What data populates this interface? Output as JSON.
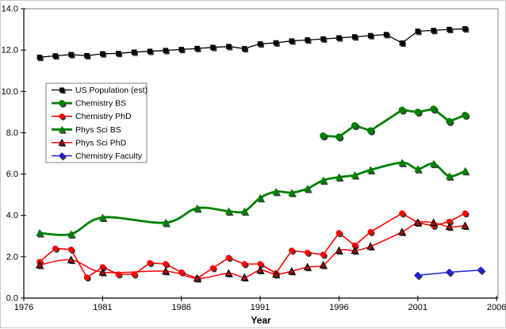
{
  "chart_data": {
    "type": "line",
    "title": "",
    "xlabel": "Year",
    "ylabel": "",
    "grid": false,
    "plot_bg": "#FFFFFF",
    "legend_position": "upper-left-inside",
    "xlim": [
      1976,
      2006.2
    ],
    "ylim": [
      0,
      14
    ],
    "x_tick_labels": [
      "1976",
      "1981",
      "1986",
      "1991",
      "1996",
      "2001",
      "2006"
    ],
    "y_tick_labels": [
      "0.0",
      "2.0",
      "4.0",
      "6.0",
      "8.0",
      "10.0",
      "12.0",
      "14.0"
    ],
    "series": [
      {
        "name": "US Population (est)",
        "color": "#000000",
        "marker": "square",
        "marker_fill": "#000000",
        "marker_stroke": "none",
        "marker_size": 6.5,
        "line_width": 1.3,
        "smooth": false,
        "points": [
          [
            1977,
            11.65
          ],
          [
            1978,
            11.72
          ],
          [
            1979,
            11.78
          ],
          [
            1980,
            11.73
          ],
          [
            1981,
            11.82
          ],
          [
            1982,
            11.84
          ],
          [
            1983,
            11.9
          ],
          [
            1984,
            11.94
          ],
          [
            1985,
            11.98
          ],
          [
            1986,
            12.03
          ],
          [
            1987,
            12.08
          ],
          [
            1988,
            12.13
          ],
          [
            1989,
            12.17
          ],
          [
            1990,
            12.07
          ],
          [
            1991,
            12.3
          ],
          [
            1992,
            12.35
          ],
          [
            1993,
            12.44
          ],
          [
            1994,
            12.49
          ],
          [
            1995,
            12.54
          ],
          [
            1996,
            12.59
          ],
          [
            1997,
            12.64
          ],
          [
            1998,
            12.7
          ],
          [
            1999,
            12.75
          ],
          [
            2000,
            12.34
          ],
          [
            2001,
            12.91
          ],
          [
            2002,
            12.95
          ],
          [
            2003,
            13.0
          ],
          [
            2004,
            13.03
          ]
        ]
      },
      {
        "name": "Chemistry BS",
        "color": "#008000",
        "marker": "circle",
        "marker_fill": "#008000",
        "marker_stroke": "none",
        "marker_size": 8.6,
        "line_width": 2.8,
        "smooth": false,
        "points": [
          [
            1995,
            7.85
          ],
          [
            1996,
            7.8
          ],
          [
            1997,
            8.35
          ],
          [
            1998,
            8.1
          ],
          [
            2000,
            9.1
          ],
          [
            2001,
            9.0
          ],
          [
            2002,
            9.15
          ],
          [
            2003,
            8.55
          ],
          [
            2004,
            8.85
          ]
        ]
      },
      {
        "name": "Chemistry PhD",
        "color": "#FF0000",
        "marker": "circle",
        "marker_fill": "#FF0000",
        "marker_stroke": "none",
        "marker_size": 7.4,
        "line_width": 1.6,
        "smooth": false,
        "points": [
          [
            1977,
            1.75
          ],
          [
            1978,
            2.4
          ],
          [
            1979,
            2.35
          ],
          [
            1980,
            1.0
          ],
          [
            1981,
            1.5
          ],
          [
            1982,
            1.15
          ],
          [
            1983,
            1.15
          ],
          [
            1984,
            1.7
          ],
          [
            1985,
            1.65
          ],
          [
            1986,
            1.25
          ],
          [
            1987,
            0.95
          ],
          [
            1988,
            1.45
          ],
          [
            1989,
            1.95
          ],
          [
            1990,
            1.65
          ],
          [
            1991,
            1.65
          ],
          [
            1992,
            1.2
          ],
          [
            1993,
            2.3
          ],
          [
            1994,
            2.2
          ],
          [
            1995,
            2.1
          ],
          [
            1996,
            3.15
          ],
          [
            1997,
            2.55
          ],
          [
            1998,
            3.2
          ],
          [
            2000,
            4.1
          ],
          [
            2001,
            3.65
          ],
          [
            2002,
            3.5
          ],
          [
            2003,
            3.7
          ],
          [
            2004,
            4.1
          ]
        ]
      },
      {
        "name": "Phys Sci BS",
        "color": "#008000",
        "marker": "triangle",
        "marker_fill": "#008000",
        "marker_stroke": "none",
        "marker_size": 9,
        "line_width": 2.8,
        "smooth": true,
        "points": [
          [
            1977,
            3.15
          ],
          [
            1979,
            3.1
          ],
          [
            1981,
            3.9
          ],
          [
            1985,
            3.65
          ],
          [
            1987,
            4.35
          ],
          [
            1989,
            4.2
          ],
          [
            1990,
            4.2
          ],
          [
            1991,
            4.85
          ],
          [
            1992,
            5.15
          ],
          [
            1993,
            5.1
          ],
          [
            1994,
            5.3
          ],
          [
            1995,
            5.7
          ],
          [
            1996,
            5.85
          ],
          [
            1997,
            5.95
          ],
          [
            1998,
            6.2
          ],
          [
            2000,
            6.55
          ],
          [
            2001,
            6.25
          ],
          [
            2002,
            6.5
          ],
          [
            2003,
            5.9
          ],
          [
            2004,
            6.15
          ]
        ]
      },
      {
        "name": "Phys Sci PhD",
        "color": "#FF0000",
        "marker": "triangle",
        "marker_fill": "#A01010",
        "marker_stroke": "#000000",
        "marker_size": 8,
        "line_width": 1.5,
        "smooth": true,
        "points": [
          [
            1977,
            1.6
          ],
          [
            1979,
            1.85
          ],
          [
            1981,
            1.25
          ],
          [
            1985,
            1.3
          ],
          [
            1987,
            0.95
          ],
          [
            1989,
            1.2
          ],
          [
            1990,
            1.0
          ],
          [
            1991,
            1.35
          ],
          [
            1992,
            1.15
          ],
          [
            1993,
            1.3
          ],
          [
            1994,
            1.5
          ],
          [
            1995,
            1.6
          ],
          [
            1996,
            2.3
          ],
          [
            1997,
            2.3
          ],
          [
            1998,
            2.5
          ],
          [
            2000,
            3.2
          ],
          [
            2001,
            3.65
          ],
          [
            2002,
            3.65
          ],
          [
            2003,
            3.45
          ],
          [
            2004,
            3.5
          ]
        ]
      },
      {
        "name": "Chemistry Faculty",
        "color": "#2222CC",
        "marker": "diamond",
        "marker_fill": "#2222CC",
        "marker_stroke": "none",
        "marker_size": 9.5,
        "line_width": 1.5,
        "smooth": false,
        "points": [
          [
            2001,
            1.1
          ],
          [
            2003,
            1.25
          ],
          [
            2005,
            1.35
          ]
        ]
      }
    ]
  }
}
